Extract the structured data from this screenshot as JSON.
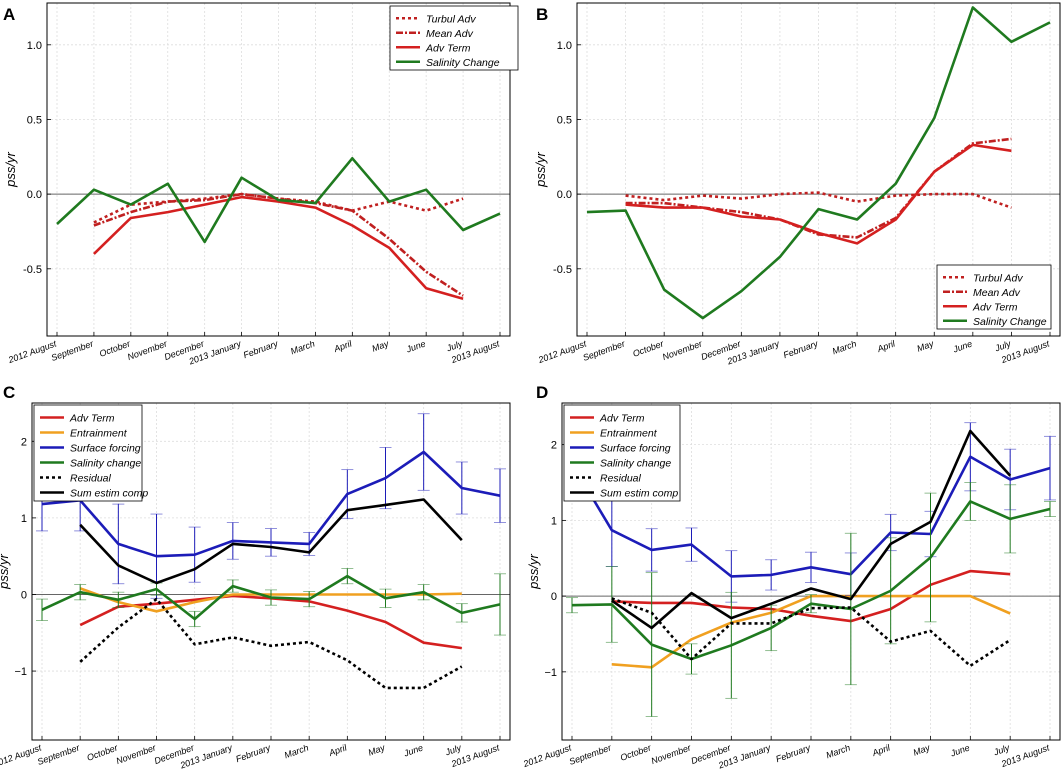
{
  "figure": {
    "months": [
      "2012 August",
      "September",
      "October",
      "November",
      "December",
      "2013 January",
      "February",
      "March",
      "April",
      "May",
      "June",
      "July",
      "2013 August"
    ],
    "colors": {
      "adv_red": "#d42020",
      "salinity_green": "#1f7a1f",
      "surface_blue": "#1c1cb8",
      "entrainment_orange": "#f0a020",
      "black": "#000000",
      "zero_line": "#666666",
      "grid": "#dddddd"
    }
  },
  "chart_data": [
    {
      "panel": "A",
      "type": "line",
      "ylabel": "pss/yr",
      "ylim": [
        -0.95,
        1.28
      ],
      "yticks": [
        -0.5,
        0.0,
        0.5,
        1.0
      ],
      "ytick_labels": [
        "-0.5",
        "0.0",
        "0.5",
        "1.0"
      ],
      "legend_position": "top-right",
      "series": [
        {
          "name": "Turbul Adv",
          "style": "dotted",
          "color": "#c02020",
          "x": [
            1,
            2,
            3,
            4,
            5,
            6,
            7,
            8,
            9,
            10,
            11
          ],
          "y": [
            -0.19,
            -0.07,
            -0.05,
            -0.03,
            0.0,
            -0.03,
            -0.05,
            -0.11,
            -0.05,
            -0.11,
            -0.03
          ]
        },
        {
          "name": "Mean Adv",
          "style": "dashdot",
          "color": "#c02020",
          "x": [
            1,
            2,
            3,
            4,
            5,
            6,
            7,
            8,
            9,
            10,
            11
          ],
          "y": [
            -0.21,
            -0.12,
            -0.05,
            -0.04,
            0.0,
            -0.03,
            -0.06,
            -0.11,
            -0.3,
            -0.52,
            -0.68
          ]
        },
        {
          "name": "Adv Term",
          "style": "solid",
          "color": "#d42020",
          "x": [
            1,
            2,
            3,
            4,
            5,
            6,
            7,
            8,
            9,
            10,
            11
          ],
          "y": [
            -0.4,
            -0.16,
            -0.12,
            -0.07,
            -0.02,
            -0.05,
            -0.09,
            -0.21,
            -0.36,
            -0.63,
            -0.7
          ]
        },
        {
          "name": "Salinity Change",
          "style": "solid",
          "color": "#1f7a1f",
          "x": [
            0,
            1,
            2,
            3,
            4,
            5,
            6,
            7,
            8,
            9,
            10,
            11,
            12
          ],
          "y": [
            -0.2,
            0.03,
            -0.07,
            0.07,
            -0.32,
            0.11,
            -0.04,
            -0.06,
            0.24,
            -0.05,
            0.03,
            -0.24,
            -0.13
          ]
        }
      ]
    },
    {
      "panel": "B",
      "type": "line",
      "ylabel": "pss/yr",
      "ylim": [
        -0.95,
        1.28
      ],
      "yticks": [
        -0.5,
        0.0,
        0.5,
        1.0
      ],
      "ytick_labels": [
        "-0.5",
        "0.0",
        "0.5",
        "1.0"
      ],
      "legend_position": "bottom-right",
      "series": [
        {
          "name": "Turbul Adv",
          "style": "dotted",
          "color": "#c02020",
          "x": [
            1,
            2,
            3,
            4,
            5,
            6,
            7,
            8,
            9,
            10,
            11
          ],
          "y": [
            -0.01,
            -0.04,
            -0.01,
            -0.03,
            0.0,
            0.01,
            -0.05,
            -0.01,
            0.0,
            0.0,
            -0.09
          ]
        },
        {
          "name": "Mean Adv",
          "style": "dashdot",
          "color": "#c02020",
          "x": [
            1,
            2,
            3,
            4,
            5,
            6,
            7,
            8,
            9,
            10,
            11
          ],
          "y": [
            -0.06,
            -0.06,
            -0.09,
            -0.12,
            -0.17,
            -0.27,
            -0.29,
            -0.16,
            0.15,
            0.34,
            0.37
          ]
        },
        {
          "name": "Adv Term",
          "style": "solid",
          "color": "#d42020",
          "x": [
            1,
            2,
            3,
            4,
            5,
            6,
            7,
            8,
            9,
            10,
            11
          ],
          "y": [
            -0.07,
            -0.09,
            -0.09,
            -0.15,
            -0.17,
            -0.26,
            -0.33,
            -0.17,
            0.15,
            0.33,
            0.29
          ]
        },
        {
          "name": "Salinity Change",
          "style": "solid",
          "color": "#1f7a1f",
          "x": [
            0,
            1,
            2,
            3,
            4,
            5,
            6,
            7,
            8,
            9,
            10,
            11,
            12
          ],
          "y": [
            -0.12,
            -0.11,
            -0.64,
            -0.83,
            -0.65,
            -0.42,
            -0.1,
            -0.17,
            0.07,
            0.51,
            1.25,
            1.02,
            1.15
          ]
        }
      ]
    },
    {
      "panel": "C",
      "type": "line",
      "ylabel": "pss/yr",
      "ylim": [
        -1.9,
        2.5
      ],
      "yticks": [
        -1,
        0,
        1,
        2
      ],
      "ytick_labels": [
        "−1",
        "0",
        "1",
        "2"
      ],
      "legend_position": "top-left",
      "series": [
        {
          "name": "Adv Term",
          "style": "solid",
          "color": "#d42020",
          "x": [
            1,
            2,
            3,
            4,
            5,
            6,
            7,
            8,
            9,
            10,
            11
          ],
          "y": [
            -0.4,
            -0.16,
            -0.12,
            -0.07,
            -0.02,
            -0.05,
            -0.09,
            -0.21,
            -0.36,
            -0.63,
            -0.7
          ]
        },
        {
          "name": "Entrainment",
          "style": "solid",
          "color": "#f0a020",
          "x": [
            1,
            2,
            3,
            4,
            5,
            6,
            7,
            8,
            9,
            10,
            11
          ],
          "y": [
            0.08,
            -0.1,
            -0.22,
            -0.1,
            0.0,
            0.0,
            0.0,
            0.0,
            0.0,
            0.0,
            0.01
          ]
        },
        {
          "name": "Surface forcing",
          "style": "solid",
          "color": "#1c1cb8",
          "x": [
            0,
            1,
            2,
            3,
            4,
            5,
            6,
            7,
            8,
            9,
            10,
            11,
            12
          ],
          "y": [
            1.18,
            1.23,
            0.66,
            0.5,
            0.52,
            0.7,
            0.68,
            0.66,
            1.31,
            1.52,
            1.86,
            1.39,
            1.29
          ],
          "err": [
            0.35,
            0.4,
            0.52,
            0.55,
            0.36,
            0.24,
            0.18,
            0.15,
            0.32,
            0.4,
            0.5,
            0.34,
            0.35
          ]
        },
        {
          "name": "Salinity change",
          "style": "solid",
          "color": "#1f7a1f",
          "x": [
            0,
            1,
            2,
            3,
            4,
            5,
            6,
            7,
            8,
            9,
            10,
            11,
            12
          ],
          "y": [
            -0.2,
            0.03,
            -0.07,
            0.07,
            -0.32,
            0.11,
            -0.04,
            -0.06,
            0.24,
            -0.05,
            0.03,
            -0.24,
            -0.13
          ],
          "err": [
            0.14,
            0.1,
            0.1,
            0.08,
            0.1,
            0.08,
            0.1,
            0.1,
            0.1,
            0.12,
            0.1,
            0.12,
            0.4
          ]
        },
        {
          "name": "Residual",
          "style": "dotted",
          "color": "#000000",
          "x": [
            1,
            2,
            3,
            4,
            5,
            6,
            7,
            8,
            9,
            10,
            11
          ],
          "y": [
            -0.88,
            -0.43,
            -0.06,
            -0.65,
            -0.56,
            -0.67,
            -0.62,
            -0.86,
            -1.22,
            -1.22,
            -0.94
          ]
        },
        {
          "name": "Sum estim comp",
          "style": "solid",
          "color": "#000000",
          "x": [
            1,
            2,
            3,
            4,
            5,
            6,
            7,
            8,
            9,
            10,
            11
          ],
          "y": [
            0.91,
            0.38,
            0.15,
            0.33,
            0.66,
            0.62,
            0.55,
            1.1,
            1.17,
            1.24,
            0.71
          ]
        }
      ]
    },
    {
      "panel": "D",
      "type": "line",
      "ylabel": "pss/yr",
      "ylim": [
        -1.9,
        2.55
      ],
      "yticks": [
        -1,
        0,
        1,
        2
      ],
      "ytick_labels": [
        "−1",
        "0",
        "1",
        "2"
      ],
      "legend_position": "top-left",
      "series": [
        {
          "name": "Adv Term",
          "style": "solid",
          "color": "#d42020",
          "x": [
            1,
            2,
            3,
            4,
            5,
            6,
            7,
            8,
            9,
            10,
            11
          ],
          "y": [
            -0.07,
            -0.09,
            -0.09,
            -0.15,
            -0.17,
            -0.26,
            -0.33,
            -0.17,
            0.15,
            0.33,
            0.29
          ]
        },
        {
          "name": "Entrainment",
          "style": "solid",
          "color": "#f0a020",
          "x": [
            1,
            2,
            3,
            4,
            5,
            6,
            7,
            8,
            9,
            10,
            11
          ],
          "y": [
            -0.9,
            -0.94,
            -0.57,
            -0.35,
            -0.22,
            0.0,
            0.0,
            0.0,
            0.0,
            0.0,
            -0.23
          ]
        },
        {
          "name": "Surface forcing",
          "style": "solid",
          "color": "#1c1cb8",
          "x": [
            0,
            1,
            2,
            3,
            4,
            5,
            6,
            7,
            8,
            9,
            10,
            11,
            12
          ],
          "y": [
            1.75,
            0.87,
            0.61,
            0.68,
            0.26,
            0.28,
            0.38,
            0.29,
            0.84,
            0.82,
            1.84,
            1.54,
            1.69
          ],
          "err": [
            0.2,
            0.48,
            0.28,
            0.22,
            0.34,
            0.2,
            0.2,
            0.28,
            0.24,
            0.3,
            0.45,
            0.4,
            0.42
          ]
        },
        {
          "name": "Salinity change",
          "style": "solid",
          "color": "#1f7a1f",
          "x": [
            0,
            1,
            2,
            3,
            4,
            5,
            6,
            7,
            8,
            9,
            10,
            11,
            12
          ],
          "y": [
            -0.12,
            -0.11,
            -0.64,
            -0.83,
            -0.65,
            -0.42,
            -0.1,
            -0.17,
            0.07,
            0.51,
            1.25,
            1.02,
            1.15
          ],
          "err": [
            0.1,
            0.5,
            0.95,
            0.2,
            0.7,
            0.3,
            0.12,
            1.0,
            0.7,
            0.85,
            0.25,
            0.45,
            0.1
          ]
        },
        {
          "name": "Residual",
          "style": "dotted",
          "color": "#000000",
          "x": [
            1,
            2,
            3,
            4,
            5,
            6,
            7,
            8,
            9,
            10,
            11
          ],
          "y": [
            -0.03,
            -0.22,
            -0.83,
            -0.36,
            -0.36,
            -0.16,
            -0.15,
            -0.6,
            -0.46,
            -0.92,
            -0.58
          ]
        },
        {
          "name": "Sum estim comp",
          "style": "solid",
          "color": "#000000",
          "x": [
            1,
            2,
            3,
            4,
            5,
            6,
            7,
            8,
            9,
            10,
            11
          ],
          "y": [
            -0.06,
            -0.42,
            0.04,
            -0.29,
            -0.1,
            0.1,
            -0.04,
            0.69,
            0.98,
            2.18,
            1.59
          ]
        }
      ]
    }
  ]
}
